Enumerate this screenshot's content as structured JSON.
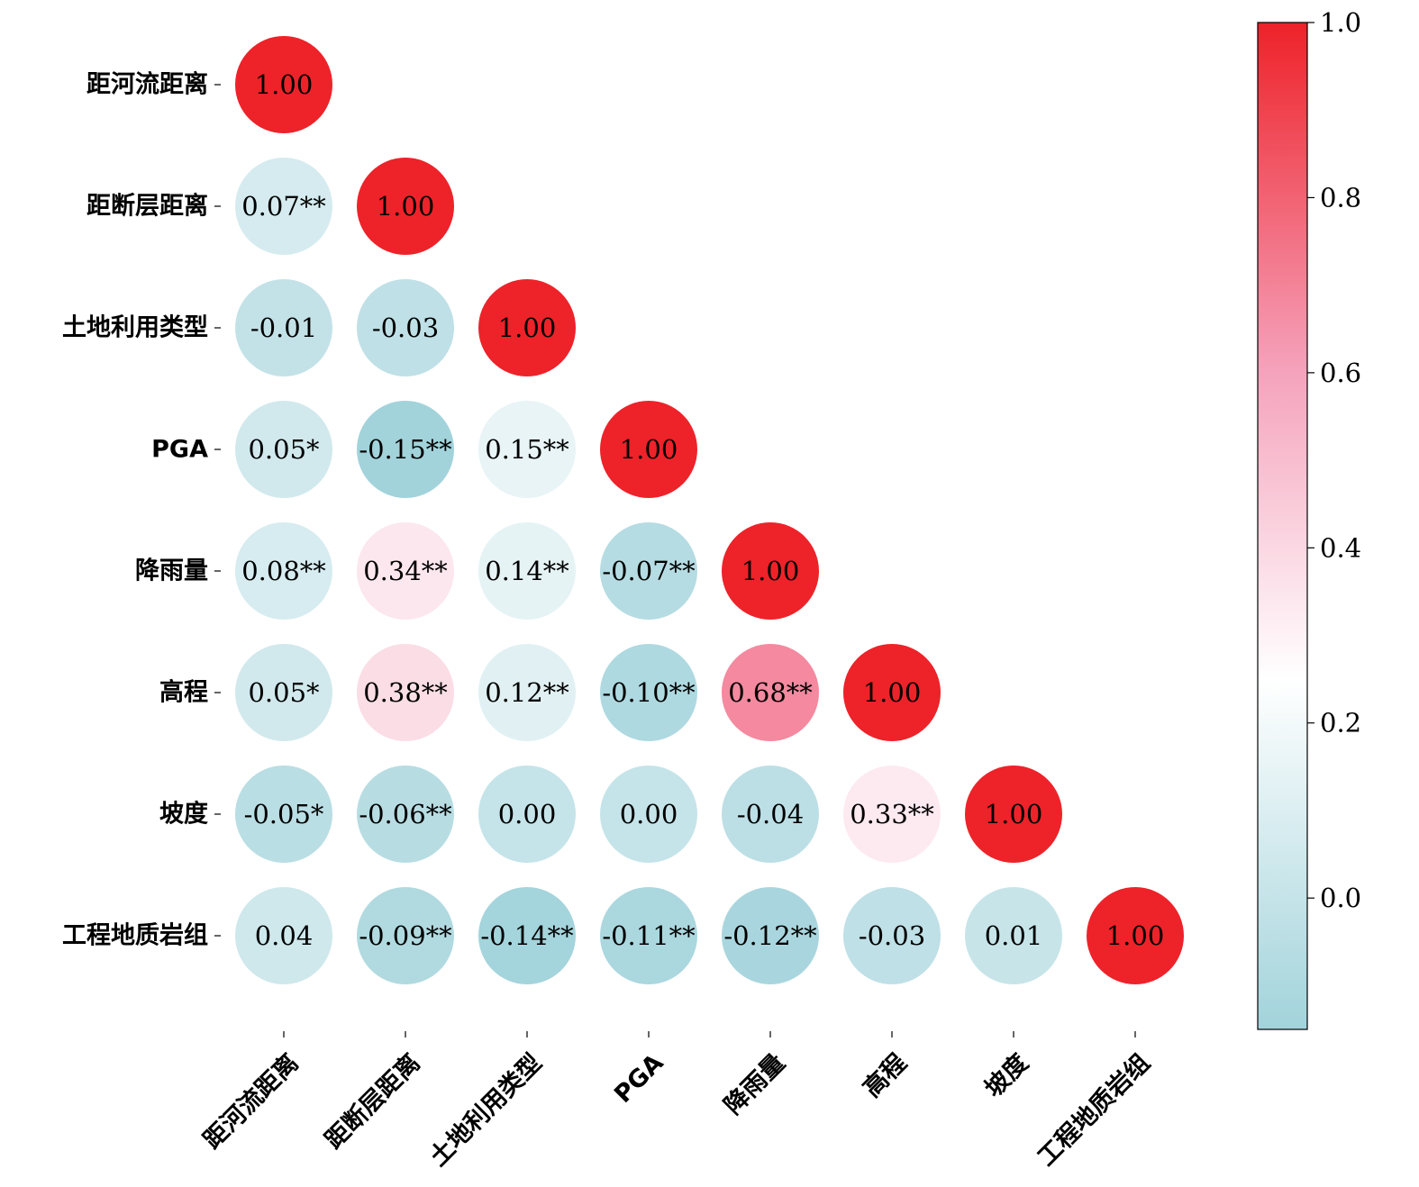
{
  "chart_data": {
    "type": "heatmap",
    "variables": [
      "距河流距离",
      "距断层距离",
      "土地利用类型",
      "PGA",
      "降雨量",
      "高程",
      "坡度",
      "工程地质岩组"
    ],
    "matrix_lower": [
      [
        1.0
      ],
      [
        0.07,
        1.0
      ],
      [
        -0.01,
        -0.03,
        1.0
      ],
      [
        0.05,
        -0.15,
        0.15,
        1.0
      ],
      [
        0.08,
        0.34,
        0.14,
        -0.07,
        1.0
      ],
      [
        0.05,
        0.38,
        0.12,
        -0.1,
        0.68,
        1.0
      ],
      [
        -0.05,
        -0.06,
        0.0,
        0.0,
        -0.04,
        0.33,
        1.0
      ],
      [
        0.04,
        -0.09,
        -0.14,
        -0.11,
        -0.12,
        -0.03,
        0.01,
        1.0
      ]
    ],
    "labels_lower": [
      [
        "1.00"
      ],
      [
        "0.07**",
        "1.00"
      ],
      [
        "-0.01",
        "-0.03",
        "1.00"
      ],
      [
        "0.05*",
        "-0.15**",
        "0.15**",
        "1.00"
      ],
      [
        "0.08**",
        "0.34**",
        "0.14**",
        "-0.07**",
        "1.00"
      ],
      [
        "0.05*",
        "0.38**",
        "0.12**",
        "-0.10**",
        "0.68**",
        "1.00"
      ],
      [
        "-0.05*",
        "-0.06**",
        "0.00",
        "0.00",
        "-0.04",
        "0.33**",
        "1.00"
      ],
      [
        "0.04",
        "-0.09**",
        "-0.14**",
        "-0.11**",
        "-0.12**",
        "-0.03",
        "0.01",
        "1.00"
      ]
    ],
    "colorbar": {
      "vmin": -0.15,
      "vmax": 1.0,
      "ticks": [
        0.0,
        0.2,
        0.4,
        0.6,
        0.8,
        1.0
      ],
      "tick_labels": [
        "0.0",
        "0.2",
        "0.4",
        "0.6",
        "0.8",
        "1.0"
      ],
      "colormap_stops": [
        {
          "value": -0.15,
          "color": "#a2d3db"
        },
        {
          "value": 0.25,
          "color": "#ffffff"
        },
        {
          "value": 0.6,
          "color": "#f5a3bd"
        },
        {
          "value": 1.0,
          "color": "#ee2229"
        }
      ]
    },
    "title": "",
    "xlabel": "",
    "ylabel": "",
    "grid": false
  }
}
